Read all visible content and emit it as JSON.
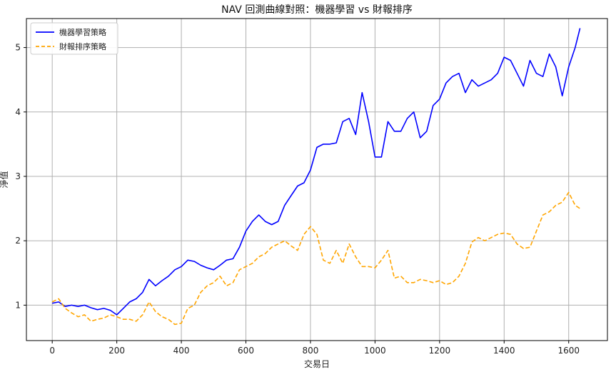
{
  "chart_data": {
    "type": "line",
    "title": "NAV 回測曲線對照：機器學習 vs 財報排序",
    "xlabel": "交易日",
    "ylabel": "淨值",
    "xlim": [
      -80,
      1720
    ],
    "ylim": [
      0.45,
      5.45
    ],
    "xticks": [
      0,
      200,
      400,
      600,
      800,
      1000,
      1200,
      1400,
      1600
    ],
    "yticks": [
      1,
      2,
      3,
      4,
      5
    ],
    "grid": true,
    "legend": "top-left",
    "series": [
      {
        "name": "機器學習策略",
        "color": "#0000ff",
        "style": "solid",
        "x": [
          0,
          20,
          40,
          60,
          80,
          100,
          120,
          140,
          160,
          180,
          200,
          220,
          240,
          260,
          280,
          300,
          320,
          340,
          360,
          380,
          400,
          420,
          440,
          460,
          480,
          500,
          520,
          540,
          560,
          580,
          600,
          620,
          640,
          660,
          680,
          700,
          720,
          740,
          760,
          780,
          800,
          820,
          840,
          860,
          880,
          900,
          920,
          940,
          960,
          980,
          1000,
          1020,
          1040,
          1060,
          1080,
          1100,
          1120,
          1140,
          1160,
          1180,
          1200,
          1220,
          1240,
          1260,
          1280,
          1300,
          1320,
          1340,
          1360,
          1380,
          1400,
          1420,
          1440,
          1460,
          1480,
          1500,
          1520,
          1540,
          1560,
          1580,
          1600,
          1620,
          1635
        ],
        "values": [
          1.03,
          1.05,
          0.98,
          1.0,
          0.98,
          1.0,
          0.96,
          0.93,
          0.95,
          0.92,
          0.85,
          0.95,
          1.05,
          1.1,
          1.2,
          1.4,
          1.3,
          1.38,
          1.45,
          1.55,
          1.6,
          1.7,
          1.68,
          1.62,
          1.58,
          1.55,
          1.62,
          1.7,
          1.72,
          1.9,
          2.15,
          2.3,
          2.4,
          2.3,
          2.25,
          2.3,
          2.55,
          2.7,
          2.85,
          2.9,
          3.1,
          3.45,
          3.5,
          3.5,
          3.52,
          3.85,
          3.9,
          3.65,
          4.3,
          3.85,
          3.3,
          3.3,
          3.85,
          3.7,
          3.7,
          3.9,
          4.0,
          3.6,
          3.7,
          4.1,
          4.2,
          4.45,
          4.55,
          4.6,
          4.3,
          4.5,
          4.4,
          4.45,
          4.5,
          4.6,
          4.85,
          4.8,
          4.6,
          4.4,
          4.8,
          4.6,
          4.55,
          4.9,
          4.7,
          4.25,
          4.7,
          5.0,
          5.3
        ]
      },
      {
        "name": "財報排序策略",
        "color": "#ffa500",
        "style": "dashed",
        "x": [
          0,
          20,
          40,
          60,
          80,
          100,
          120,
          140,
          160,
          180,
          200,
          220,
          240,
          260,
          280,
          300,
          320,
          340,
          360,
          380,
          400,
          420,
          440,
          460,
          480,
          500,
          520,
          540,
          560,
          580,
          600,
          620,
          640,
          660,
          680,
          700,
          720,
          740,
          760,
          780,
          800,
          820,
          840,
          860,
          880,
          900,
          920,
          940,
          960,
          980,
          1000,
          1020,
          1040,
          1060,
          1080,
          1100,
          1120,
          1140,
          1160,
          1180,
          1200,
          1220,
          1240,
          1260,
          1280,
          1300,
          1320,
          1340,
          1360,
          1380,
          1400,
          1420,
          1440,
          1460,
          1480,
          1500,
          1520,
          1540,
          1560,
          1580,
          1600,
          1620,
          1635
        ],
        "values": [
          1.05,
          1.1,
          0.95,
          0.88,
          0.82,
          0.85,
          0.75,
          0.78,
          0.8,
          0.85,
          0.82,
          0.78,
          0.78,
          0.75,
          0.85,
          1.05,
          0.9,
          0.82,
          0.78,
          0.7,
          0.72,
          0.95,
          1.0,
          1.2,
          1.3,
          1.35,
          1.45,
          1.3,
          1.35,
          1.55,
          1.6,
          1.65,
          1.75,
          1.8,
          1.9,
          1.95,
          2.0,
          1.92,
          1.85,
          2.1,
          2.22,
          2.1,
          1.7,
          1.65,
          1.85,
          1.65,
          1.95,
          1.75,
          1.6,
          1.6,
          1.58,
          1.7,
          1.85,
          1.42,
          1.45,
          1.35,
          1.35,
          1.4,
          1.38,
          1.35,
          1.38,
          1.32,
          1.35,
          1.45,
          1.65,
          1.98,
          2.05,
          2.0,
          2.05,
          2.1,
          2.12,
          2.1,
          1.95,
          1.88,
          1.9,
          2.15,
          2.4,
          2.45,
          2.55,
          2.6,
          2.75,
          2.55,
          2.5
        ]
      }
    ]
  }
}
